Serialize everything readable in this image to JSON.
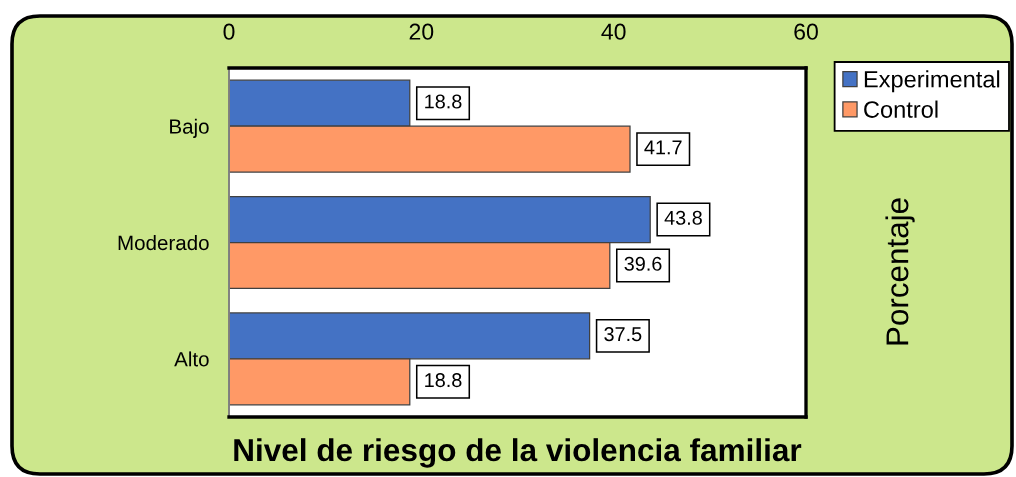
{
  "chart_data": {
    "type": "bar",
    "orientation": "horizontal",
    "categories": [
      "Bajo",
      "Moderado",
      "Alto"
    ],
    "series": [
      {
        "name": "Experimental",
        "color": "#4472c4",
        "values": [
          18.8,
          43.8,
          37.5
        ]
      },
      {
        "name": "Control",
        "color": "#ff9966",
        "values": [
          41.7,
          39.6,
          18.8
        ]
      }
    ],
    "xlim": [
      0,
      60
    ],
    "xticks": [
      0,
      20,
      40,
      60
    ],
    "xlabel": "Nivel de riesgo de la violencia familiar",
    "ylabel": "Porcentaje",
    "data_labels": true,
    "legend": "top right"
  }
}
